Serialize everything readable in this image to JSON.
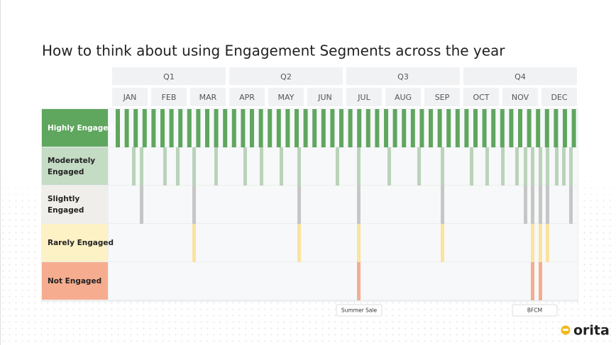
{
  "title": "How to think about using Engagement Segments across the year",
  "quarters": [
    "Q1",
    "Q2",
    "Q3",
    "Q4"
  ],
  "months": [
    "JAN",
    "FEB",
    "MAR",
    "APR",
    "MAY",
    "JUN",
    "JUL",
    "AUG",
    "SEP",
    "OCT",
    "NOV",
    "DEC"
  ],
  "segments": [
    "Highly Engaged",
    "Moderately Engaged",
    "Slightly Engaged",
    "Rarely Engaged",
    "Not Engaged"
  ],
  "annotations": [
    "Summer Sale",
    "BFCM"
  ],
  "logo": "orita"
}
